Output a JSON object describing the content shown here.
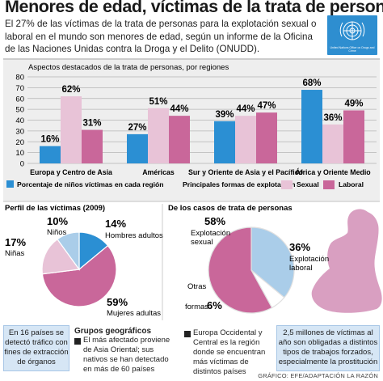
{
  "title": "Menores de edad, víctimas de la trata de personas",
  "intro": "El 27% de las víctimas de la trata de personas para la explotación sexual o laboral en el mundo son menores de edad, según un informe de la Oficina de las Naciones Unidas contra la Droga y el Delito (ONUDD).",
  "logo_text": "United Nations Office on Drugs and Crime",
  "colors": {
    "blue": "#2b8fd3",
    "pink": "#c9679a",
    "light_pink": "#e8c3d7",
    "light_blue": "#aacde9",
    "silhouette": "#d99fc1"
  },
  "chart_data": [
    {
      "type": "bar",
      "title": "Aspectos destacados de la trata de personas, por regiones",
      "categories": [
        "Europa y Centro de Asia",
        "Américas",
        "Sur y Oriente de Asia y el Pacífico",
        "África y Oriente Medio"
      ],
      "series": [
        {
          "name": "Porcentaje de niños víctimas en cada región",
          "values": [
            16,
            27,
            39,
            68
          ]
        },
        {
          "name": "Sexual",
          "values": [
            62,
            51,
            44,
            36
          ]
        },
        {
          "name": "Laboral",
          "values": [
            31,
            44,
            47,
            49
          ]
        }
      ],
      "legend_group": "Principales formas de explotación",
      "value_labels": [
        "16%",
        "62%",
        "31%",
        "27%",
        "51%",
        "44%",
        "39%",
        "44%",
        "47%",
        "68%",
        "36%",
        "49%"
      ],
      "yticks": [
        "0",
        "10",
        "20",
        "30",
        "40",
        "50",
        "60",
        "70",
        "80"
      ],
      "ylim": [
        0,
        80
      ],
      "grid": true,
      "legend_position": "bottom"
    },
    {
      "type": "pie",
      "title": "Perfil de las víctimas (2009)",
      "categories": [
        "Hombres adultos",
        "Mujeres adultas",
        "Niñas",
        "Niños"
      ],
      "values": [
        14,
        59,
        17,
        10
      ],
      "labels": [
        "14%",
        "59%",
        "17%",
        "10%"
      ]
    },
    {
      "type": "pie",
      "title": "De los casos de trata de personas",
      "categories": [
        "Explotación laboral",
        "Otras formas",
        "Explotación sexual"
      ],
      "values": [
        36,
        6,
        58
      ],
      "labels": [
        "36%",
        "6%",
        "58%"
      ],
      "category_lines": [
        [
          "Explotación",
          "laboral"
        ],
        [
          "Otras",
          "formas"
        ],
        [
          "Explotación",
          "sexual"
        ]
      ]
    }
  ],
  "bottom": {
    "left_box": "En 16 países se detectó tráfico con fines de extracción de órganos",
    "groups_title": "Grupos geográficos",
    "group1": "El más afectado proviene de Asia Oriental; sus nativos se han detectado en más de 60 países",
    "group2": "Europa Occidental y Central es la región donde se encuentran más víctimas de distintos países",
    "right_box": "2,5 millones de víctimas al año son obligadas a distintos tipos de trabajos forzados, especialmente la prostitución",
    "credit": "GRÁFICO: EFE/ADAPTACIÓN LA RAZÓN"
  }
}
